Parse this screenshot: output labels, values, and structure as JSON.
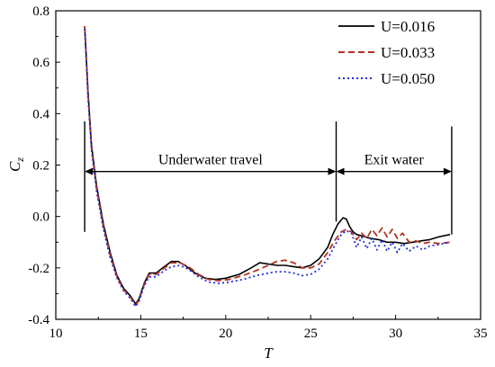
{
  "chart_data": {
    "type": "line",
    "xlabel": "T",
    "ylabel": "C",
    "ylabel_sub": "z",
    "xlim": [
      10,
      35
    ],
    "ylim": [
      -0.4,
      0.8
    ],
    "xticks": [
      10,
      15,
      20,
      25,
      30,
      35
    ],
    "yticks": [
      -0.4,
      -0.2,
      0.0,
      0.2,
      0.4,
      0.6,
      0.8
    ],
    "grid": false,
    "legend_position": "top-right",
    "series": [
      {
        "name": "U=0.016",
        "color": "#000000",
        "style": "solid",
        "points": [
          [
            11.7,
            0.74
          ],
          [
            11.9,
            0.48
          ],
          [
            12.1,
            0.28
          ],
          [
            12.4,
            0.12
          ],
          [
            12.8,
            -0.03
          ],
          [
            13.2,
            -0.14
          ],
          [
            13.6,
            -0.23
          ],
          [
            14.0,
            -0.28
          ],
          [
            14.4,
            -0.31
          ],
          [
            14.7,
            -0.34
          ],
          [
            14.9,
            -0.32
          ],
          [
            15.2,
            -0.26
          ],
          [
            15.5,
            -0.22
          ],
          [
            15.9,
            -0.22
          ],
          [
            16.3,
            -0.2
          ],
          [
            16.8,
            -0.175
          ],
          [
            17.2,
            -0.175
          ],
          [
            17.6,
            -0.19
          ],
          [
            18.2,
            -0.22
          ],
          [
            18.8,
            -0.24
          ],
          [
            19.4,
            -0.245
          ],
          [
            20.0,
            -0.24
          ],
          [
            20.8,
            -0.225
          ],
          [
            21.5,
            -0.2
          ],
          [
            22.0,
            -0.18
          ],
          [
            22.5,
            -0.185
          ],
          [
            23.0,
            -0.19
          ],
          [
            23.5,
            -0.19
          ],
          [
            24.0,
            -0.195
          ],
          [
            24.5,
            -0.2
          ],
          [
            25.0,
            -0.19
          ],
          [
            25.5,
            -0.165
          ],
          [
            26.0,
            -0.12
          ],
          [
            26.3,
            -0.07
          ],
          [
            26.6,
            -0.03
          ],
          [
            26.9,
            -0.005
          ],
          [
            27.1,
            -0.01
          ],
          [
            27.3,
            -0.04
          ],
          [
            27.5,
            -0.06
          ],
          [
            27.7,
            -0.07
          ],
          [
            28.0,
            -0.075
          ],
          [
            28.5,
            -0.085
          ],
          [
            29.0,
            -0.09
          ],
          [
            29.5,
            -0.1
          ],
          [
            30.0,
            -0.1
          ],
          [
            30.5,
            -0.105
          ],
          [
            31.0,
            -0.1
          ],
          [
            31.5,
            -0.095
          ],
          [
            32.0,
            -0.09
          ],
          [
            32.5,
            -0.08
          ],
          [
            33.2,
            -0.07
          ]
        ]
      },
      {
        "name": "U=0.033",
        "color": "#b3331f",
        "style": "dashed",
        "points": [
          [
            11.7,
            0.74
          ],
          [
            11.9,
            0.47
          ],
          [
            12.1,
            0.27
          ],
          [
            12.4,
            0.11
          ],
          [
            12.8,
            -0.04
          ],
          [
            13.2,
            -0.15
          ],
          [
            13.6,
            -0.235
          ],
          [
            14.0,
            -0.285
          ],
          [
            14.4,
            -0.315
          ],
          [
            14.7,
            -0.345
          ],
          [
            14.9,
            -0.325
          ],
          [
            15.2,
            -0.265
          ],
          [
            15.5,
            -0.225
          ],
          [
            15.9,
            -0.225
          ],
          [
            16.3,
            -0.205
          ],
          [
            16.8,
            -0.18
          ],
          [
            17.3,
            -0.18
          ],
          [
            17.8,
            -0.195
          ],
          [
            18.4,
            -0.225
          ],
          [
            19.0,
            -0.245
          ],
          [
            19.6,
            -0.25
          ],
          [
            20.2,
            -0.245
          ],
          [
            21.0,
            -0.23
          ],
          [
            21.8,
            -0.21
          ],
          [
            22.5,
            -0.19
          ],
          [
            23.0,
            -0.175
          ],
          [
            23.5,
            -0.17
          ],
          [
            24.0,
            -0.18
          ],
          [
            24.5,
            -0.2
          ],
          [
            25.0,
            -0.2
          ],
          [
            25.5,
            -0.185
          ],
          [
            26.0,
            -0.14
          ],
          [
            26.4,
            -0.095
          ],
          [
            26.8,
            -0.06
          ],
          [
            27.1,
            -0.05
          ],
          [
            27.4,
            -0.06
          ],
          [
            27.7,
            -0.09
          ],
          [
            28.0,
            -0.065
          ],
          [
            28.3,
            -0.085
          ],
          [
            28.6,
            -0.05
          ],
          [
            28.9,
            -0.075
          ],
          [
            29.2,
            -0.045
          ],
          [
            29.5,
            -0.08
          ],
          [
            29.8,
            -0.05
          ],
          [
            30.1,
            -0.085
          ],
          [
            30.4,
            -0.065
          ],
          [
            30.8,
            -0.1
          ],
          [
            31.2,
            -0.095
          ],
          [
            31.6,
            -0.105
          ],
          [
            32.0,
            -0.1
          ],
          [
            32.5,
            -0.105
          ],
          [
            33.2,
            -0.1
          ]
        ]
      },
      {
        "name": "U=0.050",
        "color": "#1f2fd6",
        "style": "dotted",
        "points": [
          [
            11.7,
            0.73
          ],
          [
            11.9,
            0.46
          ],
          [
            12.1,
            0.26
          ],
          [
            12.4,
            0.1
          ],
          [
            12.8,
            -0.05
          ],
          [
            13.2,
            -0.16
          ],
          [
            13.6,
            -0.24
          ],
          [
            14.0,
            -0.29
          ],
          [
            14.4,
            -0.32
          ],
          [
            14.7,
            -0.35
          ],
          [
            14.9,
            -0.33
          ],
          [
            15.2,
            -0.27
          ],
          [
            15.5,
            -0.235
          ],
          [
            15.9,
            -0.235
          ],
          [
            16.3,
            -0.215
          ],
          [
            16.8,
            -0.195
          ],
          [
            17.3,
            -0.19
          ],
          [
            17.8,
            -0.205
          ],
          [
            18.4,
            -0.235
          ],
          [
            19.0,
            -0.255
          ],
          [
            19.6,
            -0.26
          ],
          [
            20.2,
            -0.255
          ],
          [
            21.0,
            -0.245
          ],
          [
            21.8,
            -0.23
          ],
          [
            22.5,
            -0.22
          ],
          [
            23.0,
            -0.215
          ],
          [
            23.5,
            -0.215
          ],
          [
            24.0,
            -0.22
          ],
          [
            24.5,
            -0.23
          ],
          [
            25.0,
            -0.225
          ],
          [
            25.5,
            -0.205
          ],
          [
            26.0,
            -0.165
          ],
          [
            26.4,
            -0.115
          ],
          [
            26.8,
            -0.07
          ],
          [
            27.1,
            -0.055
          ],
          [
            27.4,
            -0.065
          ],
          [
            27.7,
            -0.12
          ],
          [
            28.0,
            -0.08
          ],
          [
            28.3,
            -0.125
          ],
          [
            28.6,
            -0.085
          ],
          [
            28.9,
            -0.13
          ],
          [
            29.2,
            -0.09
          ],
          [
            29.5,
            -0.135
          ],
          [
            29.8,
            -0.1
          ],
          [
            30.1,
            -0.14
          ],
          [
            30.4,
            -0.105
          ],
          [
            30.8,
            -0.135
          ],
          [
            31.2,
            -0.115
          ],
          [
            31.6,
            -0.13
          ],
          [
            32.0,
            -0.115
          ],
          [
            32.5,
            -0.11
          ],
          [
            33.2,
            -0.1
          ]
        ]
      }
    ],
    "annotations": [
      {
        "text": "Underwater travel",
        "x_start": 11.7,
        "x_end": 26.5,
        "y": 0.175
      },
      {
        "text": "Exit water",
        "x_start": 26.5,
        "x_end": 33.3,
        "y": 0.175
      }
    ],
    "markers": [
      {
        "x": 11.7,
        "y_from": -0.06,
        "y_to": 0.37
      },
      {
        "x": 26.5,
        "y_from": -0.02,
        "y_to": 0.37
      },
      {
        "x": 33.3,
        "y_from": -0.07,
        "y_to": 0.35
      }
    ]
  }
}
